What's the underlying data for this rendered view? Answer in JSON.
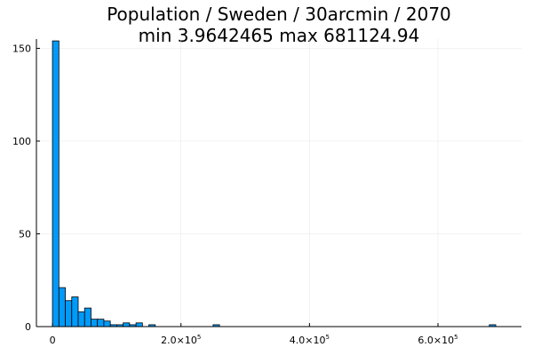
{
  "chart_data": {
    "type": "bar",
    "title": "Population / Sweden / 30arcmin / 2070",
    "subtitle": "min 3.9642465  max 681124.94",
    "xlabel": "",
    "ylabel": "",
    "bin_width": 10000,
    "xlim": [
      -25000,
      730000
    ],
    "ylim": [
      0,
      155
    ],
    "grid": true,
    "legend": "none",
    "x_ticks": [
      {
        "value": 0,
        "label": "0"
      },
      {
        "value": 200000,
        "base": "2.0×10",
        "exp": "5"
      },
      {
        "value": 400000,
        "base": "4.0×10",
        "exp": "5"
      },
      {
        "value": 600000,
        "base": "6.0×10",
        "exp": "5"
      }
    ],
    "y_ticks": [
      {
        "value": 0,
        "label": "0"
      },
      {
        "value": 50,
        "label": "50"
      },
      {
        "value": 100,
        "label": "100"
      },
      {
        "value": 150,
        "label": "150"
      }
    ],
    "bins": [
      {
        "x0": 0,
        "x1": 10000,
        "count": 154
      },
      {
        "x0": 10000,
        "x1": 20000,
        "count": 21
      },
      {
        "x0": 20000,
        "x1": 30000,
        "count": 14
      },
      {
        "x0": 30000,
        "x1": 40000,
        "count": 16
      },
      {
        "x0": 40000,
        "x1": 50000,
        "count": 8
      },
      {
        "x0": 50000,
        "x1": 60000,
        "count": 10
      },
      {
        "x0": 60000,
        "x1": 70000,
        "count": 4
      },
      {
        "x0": 70000,
        "x1": 80000,
        "count": 4
      },
      {
        "x0": 80000,
        "x1": 90000,
        "count": 3
      },
      {
        "x0": 90000,
        "x1": 100000,
        "count": 1
      },
      {
        "x0": 100000,
        "x1": 110000,
        "count": 1
      },
      {
        "x0": 110000,
        "x1": 120000,
        "count": 2
      },
      {
        "x0": 120000,
        "x1": 130000,
        "count": 1
      },
      {
        "x0": 130000,
        "x1": 140000,
        "count": 2
      },
      {
        "x0": 150000,
        "x1": 160000,
        "count": 1
      },
      {
        "x0": 250000,
        "x1": 260000,
        "count": 1
      },
      {
        "x0": 680000,
        "x1": 690000,
        "count": 1
      }
    ],
    "colors": {
      "bar_fill": "#009af9",
      "bar_stroke": "#000000",
      "grid": "#e6e6e6",
      "axis": "#000000"
    }
  }
}
